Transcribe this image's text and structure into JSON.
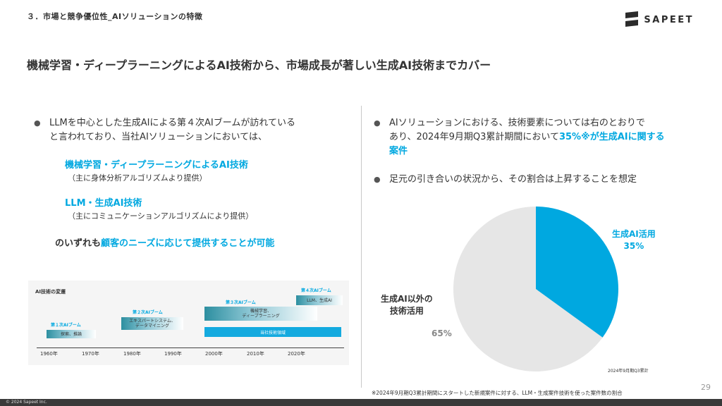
{
  "header": {
    "section": "３．市場と競争優位性_AIソリューションの特徴",
    "logo_text": "SAPEET"
  },
  "headline": "機械学習・ディープラーニングによるAI技術から、市場成長が著しい生成AI技術までカバー",
  "left": {
    "bullet_line1": "LLMを中心とした生成AIによる第４次AIブームが訪れている",
    "bullet_line2": "と言われており、当社AIソリューションにおいては、",
    "tech1_title": "機械学習・ディープラーニングによるAI技術",
    "tech1_sub": "（主に身体分析アルゴリズムより提供）",
    "tech2_title": "LLM・生成AI技術",
    "tech2_sub": "（主にコミュニケーションアルゴリズムにより提供）",
    "conclusion_prefix": "のいずれも",
    "conclusion_accent": "顧客のニーズに応じて提供することが可能"
  },
  "timeline": {
    "title": "AI技術の変遷",
    "booms": [
      {
        "label": "第１次AIブーム",
        "box": "探索、推論"
      },
      {
        "label": "第２次AIブーム",
        "box_line1": "エキスパートシステム、",
        "box_line2": "データマイニング"
      },
      {
        "label": "第３次AIブーム",
        "box_line1": "機械学習、",
        "box_line2": "ディープラーニング"
      },
      {
        "label": "第４次AIブーム",
        "box": "LLM、生成AI"
      }
    ],
    "sapeet_domain": "当社技術領域",
    "years": [
      "1960年",
      "1970年",
      "1980年",
      "1990年",
      "2000年",
      "2010年",
      "2020年"
    ]
  },
  "right": {
    "bullet1_line1": "AIソリューションにおける、技術要素については右のとおりで",
    "bullet1_line2_prefix": "あり、2024年9月期Q3累計期間において",
    "bullet1_line2_accent": "35%※が生成AIに関する",
    "bullet1_line3_accent": "案件",
    "bullet2": "足元の引き合いの状況から、その割合は上昇することを想定"
  },
  "chart_data": {
    "type": "pie",
    "categories": [
      "生成AI活用",
      "生成AI以外の技術活用"
    ],
    "values": [
      35,
      65
    ],
    "value_labels": [
      "35%",
      "65%"
    ],
    "colors": [
      "#00a8e0",
      "#e6e6e6"
    ],
    "label_line1": "生成AI活用",
    "other_line1": "生成AI以外の",
    "other_line2": "技術活用",
    "period_note": "2024年9月期Q3累計"
  },
  "footnote": "※2024年9月期Q3累計期間にスタートした新規案件に対する、LLM・生成案件技術を使った案件数の割合",
  "page_number": "29",
  "copyright": "© 2024 Sapeet Inc."
}
